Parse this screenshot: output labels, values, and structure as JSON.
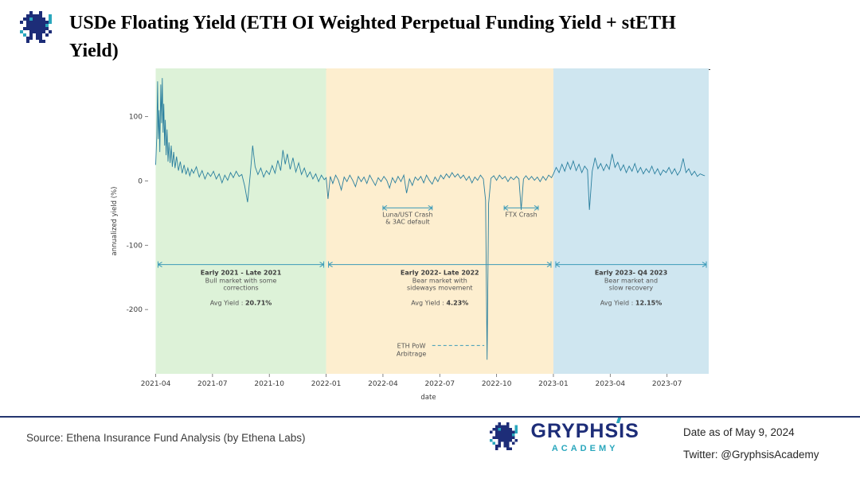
{
  "header": {
    "title": "USDe Floating Yield (ETH OI Weighted Perpetual Funding Yield + stETH Yield)"
  },
  "footer": {
    "source": "Source: Ethena Insurance Fund Analysis (by Ethena Labs)",
    "brand_name": "GRYPHSIS",
    "brand_subtitle": "ACADEMY",
    "date_text": "Date as of May 9, 2024",
    "twitter_text": "Twitter: @GryphsisAcademy"
  },
  "colors": {
    "navy": "#1d2d78",
    "teal": "#2aa7bd",
    "line": "#2a7f9e",
    "annotation": "#3b9ab8"
  },
  "chart_data": {
    "type": "line",
    "xlabel": "date",
    "ylabel": "annualized yield (%)",
    "x_unit": "months since 2021-04",
    "xlim": [
      -0.4,
      29.2
    ],
    "ylim": [
      -300,
      175
    ],
    "grid": false,
    "x_ticks": [
      {
        "label": "2021-04",
        "x": 0
      },
      {
        "label": "2021-07",
        "x": 3
      },
      {
        "label": "2021-10",
        "x": 6
      },
      {
        "label": "2022-01",
        "x": 9
      },
      {
        "label": "2022-04",
        "x": 12
      },
      {
        "label": "2022-07",
        "x": 15
      },
      {
        "label": "2022-10",
        "x": 18
      },
      {
        "label": "2023-01",
        "x": 21
      },
      {
        "label": "2023-04",
        "x": 24
      },
      {
        "label": "2023-07",
        "x": 27
      }
    ],
    "y_ticks": [
      {
        "label": "100",
        "y": 100
      },
      {
        "label": "0",
        "y": 0
      },
      {
        "label": "-100",
        "y": -100
      },
      {
        "label": "-200",
        "y": -200
      }
    ],
    "regions": [
      {
        "x0": 0,
        "x1": 9,
        "color": "#ddf2d8",
        "title": "Early 2021 - Late 2021",
        "desc": [
          "Bull market with some",
          "corrections"
        ],
        "avg_label": "Avg Yield : ",
        "avg_value": "20.71%",
        "center_x": 4.5
      },
      {
        "x0": 9,
        "x1": 21,
        "color": "#fdeecf",
        "title": "Early 2022- Late 2022",
        "desc": [
          "Bear market with",
          "sideways movement"
        ],
        "avg_label": "Avg Yield : ",
        "avg_value": "4.23%",
        "center_x": 15
      },
      {
        "x0": 21,
        "x1": 29.2,
        "color": "#cfe6f0",
        "title": "Early 2023- Q4 2023",
        "desc": [
          "Bear market and",
          "slow recovery"
        ],
        "avg_label": "Avg Yield : ",
        "avg_value": "12.15%",
        "center_x": 25.1
      }
    ],
    "region_arrow_y": -130,
    "region_label_y": -146,
    "events": [
      {
        "kind": "span-label",
        "lines": [
          "Luna/UST Crash",
          "& 3AC default"
        ],
        "x": 13.3,
        "y": -42,
        "half_width": 1.3
      },
      {
        "kind": "span-label",
        "lines": [
          "FTX Crash"
        ],
        "x": 19.3,
        "y": -42,
        "half_width": 0.9
      },
      {
        "kind": "dash-label",
        "lines": [
          "ETH PoW",
          "Arbitrage"
        ],
        "x": 13.5,
        "y": -256,
        "dash_x1": 14.6,
        "dash_x2": 17.35
      }
    ],
    "series": [
      {
        "name": "USDe floating yield (ETH OI weighted perpetual funding + stETH yield, annualized %)",
        "color": "#2a7f9e",
        "points": [
          [
            0,
            25
          ],
          [
            0.06,
            70
          ],
          [
            0.1,
            155
          ],
          [
            0.14,
            65
          ],
          [
            0.18,
            110
          ],
          [
            0.22,
            45
          ],
          [
            0.27,
            150
          ],
          [
            0.31,
            90
          ],
          [
            0.35,
            160
          ],
          [
            0.39,
            75
          ],
          [
            0.43,
            120
          ],
          [
            0.47,
            55
          ],
          [
            0.51,
            95
          ],
          [
            0.55,
            40
          ],
          [
            0.6,
            80
          ],
          [
            0.65,
            30
          ],
          [
            0.7,
            60
          ],
          [
            0.76,
            28
          ],
          [
            0.82,
            55
          ],
          [
            0.88,
            22
          ],
          [
            0.95,
            45
          ],
          [
            1.02,
            20
          ],
          [
            1.1,
            38
          ],
          [
            1.2,
            16
          ],
          [
            1.3,
            30
          ],
          [
            1.4,
            12
          ],
          [
            1.5,
            25
          ],
          [
            1.6,
            10
          ],
          [
            1.7,
            20
          ],
          [
            1.8,
            8
          ],
          [
            1.9,
            18
          ],
          [
            2,
            12
          ],
          [
            2.15,
            22
          ],
          [
            2.3,
            6
          ],
          [
            2.45,
            16
          ],
          [
            2.6,
            3
          ],
          [
            2.75,
            13
          ],
          [
            2.9,
            7
          ],
          [
            3.05,
            15
          ],
          [
            3.2,
            3
          ],
          [
            3.35,
            11
          ],
          [
            3.5,
            -3
          ],
          [
            3.65,
            9
          ],
          [
            3.8,
            1
          ],
          [
            3.95,
            13
          ],
          [
            4.1,
            5
          ],
          [
            4.25,
            15
          ],
          [
            4.4,
            7
          ],
          [
            4.55,
            10
          ],
          [
            4.7,
            -8
          ],
          [
            4.85,
            -33
          ],
          [
            5,
            12
          ],
          [
            5.12,
            55
          ],
          [
            5.25,
            22
          ],
          [
            5.4,
            10
          ],
          [
            5.55,
            20
          ],
          [
            5.7,
            6
          ],
          [
            5.85,
            16
          ],
          [
            6,
            10
          ],
          [
            6.15,
            24
          ],
          [
            6.3,
            12
          ],
          [
            6.45,
            32
          ],
          [
            6.6,
            16
          ],
          [
            6.72,
            48
          ],
          [
            6.84,
            26
          ],
          [
            6.95,
            42
          ],
          [
            7.1,
            18
          ],
          [
            7.25,
            36
          ],
          [
            7.4,
            14
          ],
          [
            7.55,
            28
          ],
          [
            7.7,
            10
          ],
          [
            7.85,
            20
          ],
          [
            8,
            6
          ],
          [
            8.15,
            14
          ],
          [
            8.3,
            3
          ],
          [
            8.45,
            11
          ],
          [
            8.6,
            -1
          ],
          [
            8.75,
            9
          ],
          [
            8.9,
            2
          ],
          [
            9,
            5
          ],
          [
            9.1,
            -28
          ],
          [
            9.22,
            7
          ],
          [
            9.35,
            -4
          ],
          [
            9.5,
            9
          ],
          [
            9.65,
            1
          ],
          [
            9.8,
            -14
          ],
          [
            9.95,
            6
          ],
          [
            10.1,
            -1
          ],
          [
            10.25,
            9
          ],
          [
            10.4,
            1
          ],
          [
            10.55,
            -9
          ],
          [
            10.7,
            7
          ],
          [
            10.85,
            -1
          ],
          [
            11,
            6
          ],
          [
            11.15,
            -4
          ],
          [
            11.3,
            9
          ],
          [
            11.45,
            1
          ],
          [
            11.6,
            -7
          ],
          [
            11.75,
            5
          ],
          [
            11.9,
            -1
          ],
          [
            12.05,
            7
          ],
          [
            12.2,
            1
          ],
          [
            12.35,
            -11
          ],
          [
            12.5,
            5
          ],
          [
            12.65,
            -3
          ],
          [
            12.8,
            7
          ],
          [
            12.95,
            -1
          ],
          [
            13.1,
            9
          ],
          [
            13.25,
            -19
          ],
          [
            13.4,
            3
          ],
          [
            13.55,
            -7
          ],
          [
            13.7,
            6
          ],
          [
            13.85,
            1
          ],
          [
            14,
            7
          ],
          [
            14.15,
            -3
          ],
          [
            14.3,
            9
          ],
          [
            14.45,
            1
          ],
          [
            14.6,
            -5
          ],
          [
            14.75,
            6
          ],
          [
            14.9,
            -1
          ],
          [
            15.05,
            9
          ],
          [
            15.2,
            3
          ],
          [
            15.35,
            11
          ],
          [
            15.5,
            5
          ],
          [
            15.65,
            13
          ],
          [
            15.8,
            6
          ],
          [
            15.95,
            11
          ],
          [
            16.1,
            4
          ],
          [
            16.25,
            9
          ],
          [
            16.4,
            1
          ],
          [
            16.55,
            7
          ],
          [
            16.7,
            -3
          ],
          [
            16.85,
            6
          ],
          [
            17,
            1
          ],
          [
            17.15,
            9
          ],
          [
            17.3,
            3
          ],
          [
            17.42,
            -30
          ],
          [
            17.5,
            -278
          ],
          [
            17.58,
            -35
          ],
          [
            17.7,
            4
          ],
          [
            17.85,
            8
          ],
          [
            18,
            1
          ],
          [
            18.15,
            9
          ],
          [
            18.3,
            3
          ],
          [
            18.45,
            7
          ],
          [
            18.6,
            -1
          ],
          [
            18.75,
            6
          ],
          [
            18.9,
            2
          ],
          [
            19.05,
            7
          ],
          [
            19.18,
            3
          ],
          [
            19.3,
            -45
          ],
          [
            19.42,
            3
          ],
          [
            19.55,
            8
          ],
          [
            19.7,
            2
          ],
          [
            19.85,
            7
          ],
          [
            20,
            1
          ],
          [
            20.15,
            6
          ],
          [
            20.3,
            -1
          ],
          [
            20.45,
            7
          ],
          [
            20.6,
            1
          ],
          [
            20.75,
            9
          ],
          [
            20.9,
            5
          ],
          [
            21,
            11
          ],
          [
            21.15,
            21
          ],
          [
            21.3,
            13
          ],
          [
            21.45,
            26
          ],
          [
            21.6,
            15
          ],
          [
            21.75,
            29
          ],
          [
            21.9,
            18
          ],
          [
            22.05,
            31
          ],
          [
            22.2,
            16
          ],
          [
            22.35,
            26
          ],
          [
            22.5,
            13
          ],
          [
            22.65,
            23
          ],
          [
            22.8,
            17
          ],
          [
            22.9,
            -45
          ],
          [
            23.05,
            15
          ],
          [
            23.2,
            36
          ],
          [
            23.35,
            19
          ],
          [
            23.5,
            27
          ],
          [
            23.65,
            16
          ],
          [
            23.8,
            26
          ],
          [
            23.95,
            18
          ],
          [
            24.1,
            42
          ],
          [
            24.25,
            21
          ],
          [
            24.4,
            29
          ],
          [
            24.55,
            16
          ],
          [
            24.7,
            25
          ],
          [
            24.85,
            13
          ],
          [
            25,
            23
          ],
          [
            25.15,
            15
          ],
          [
            25.3,
            27
          ],
          [
            25.45,
            13
          ],
          [
            25.6,
            21
          ],
          [
            25.75,
            11
          ],
          [
            25.9,
            19
          ],
          [
            26.05,
            13
          ],
          [
            26.2,
            23
          ],
          [
            26.35,
            11
          ],
          [
            26.5,
            19
          ],
          [
            26.65,
            9
          ],
          [
            26.8,
            17
          ],
          [
            26.95,
            13
          ],
          [
            27.1,
            21
          ],
          [
            27.25,
            11
          ],
          [
            27.4,
            19
          ],
          [
            27.55,
            9
          ],
          [
            27.7,
            16
          ],
          [
            27.85,
            35
          ],
          [
            28,
            13
          ],
          [
            28.15,
            19
          ],
          [
            28.3,
            9
          ],
          [
            28.45,
            15
          ],
          [
            28.6,
            7
          ],
          [
            28.75,
            11
          ],
          [
            28.9,
            9
          ],
          [
            29,
            8
          ]
        ]
      }
    ]
  }
}
